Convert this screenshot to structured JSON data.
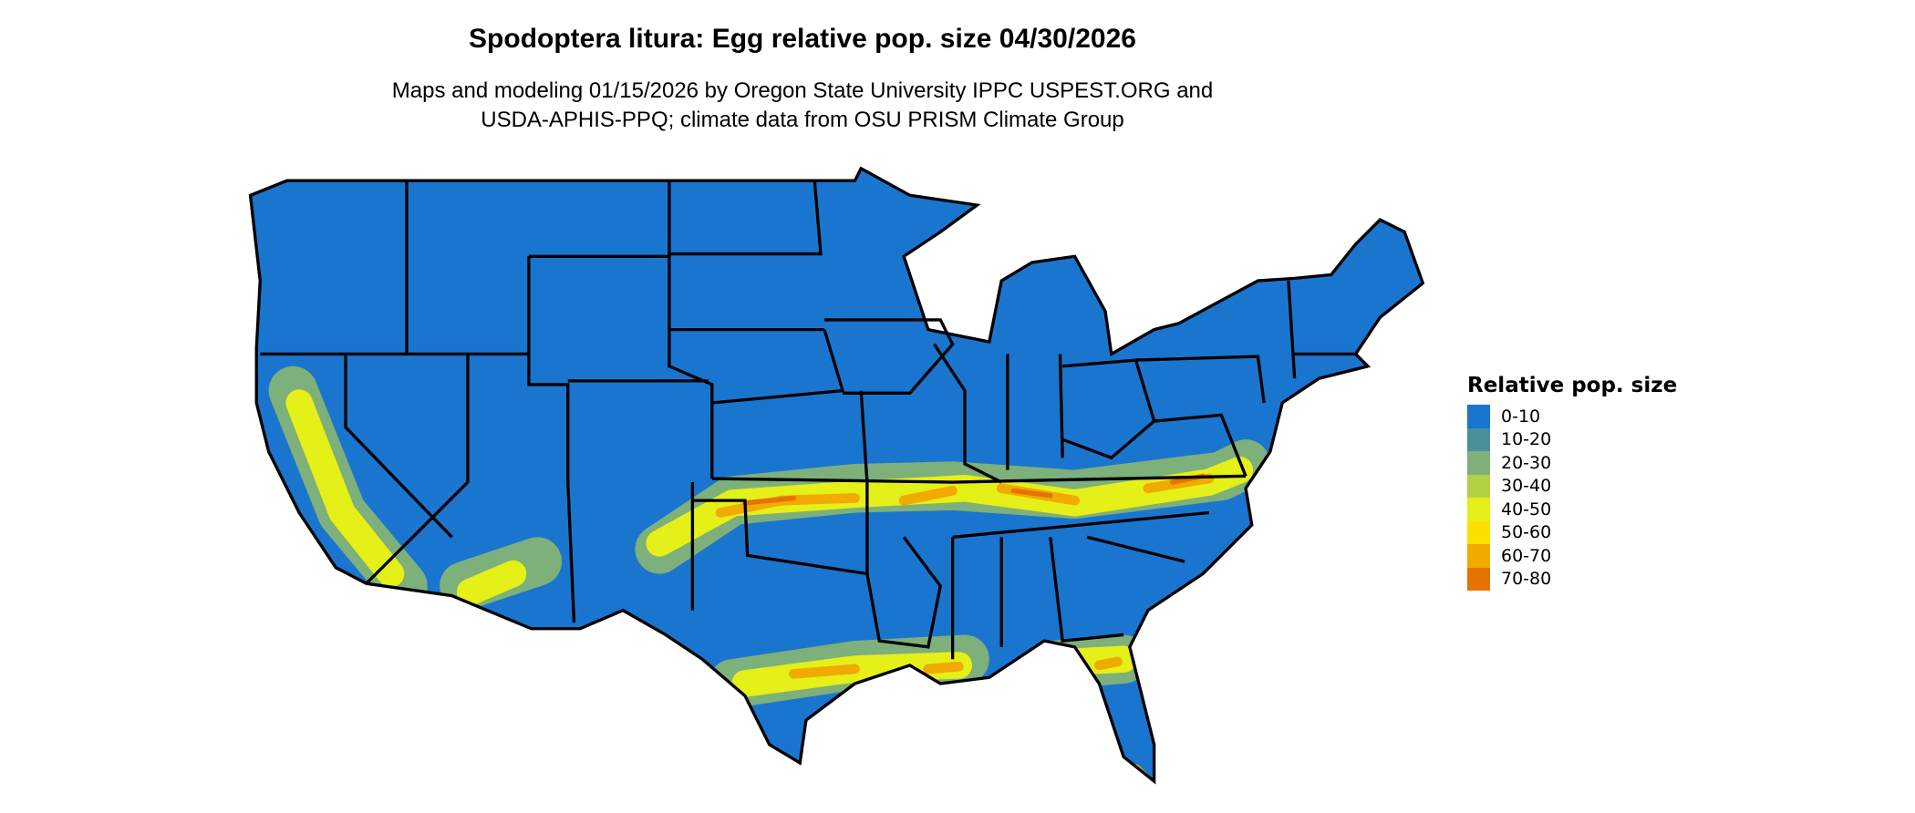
{
  "title": "Spodoptera litura: Egg relative pop. size 04/30/2026",
  "subtitle_line1": "Maps and modeling 01/15/2026 by Oregon State University IPPC USPEST.ORG and",
  "subtitle_line2": "USDA-APHIS-PPQ; climate data from OSU PRISM Climate Group",
  "map": {
    "region": "Contiguous United States",
    "base_color": "#1a75cf",
    "border_color": "#000000"
  },
  "legend": {
    "title": "Relative pop. size",
    "items": [
      {
        "label": "0-10",
        "color": "#1a75cf"
      },
      {
        "label": "10-20",
        "color": "#4a909c"
      },
      {
        "label": "20-30",
        "color": "#7db07a"
      },
      {
        "label": "30-40",
        "color": "#b3d147"
      },
      {
        "label": "40-50",
        "color": "#e5ef18"
      },
      {
        "label": "50-60",
        "color": "#fbe000"
      },
      {
        "label": "60-70",
        "color": "#f0aa00"
      },
      {
        "label": "70-80",
        "color": "#e67300"
      }
    ]
  }
}
